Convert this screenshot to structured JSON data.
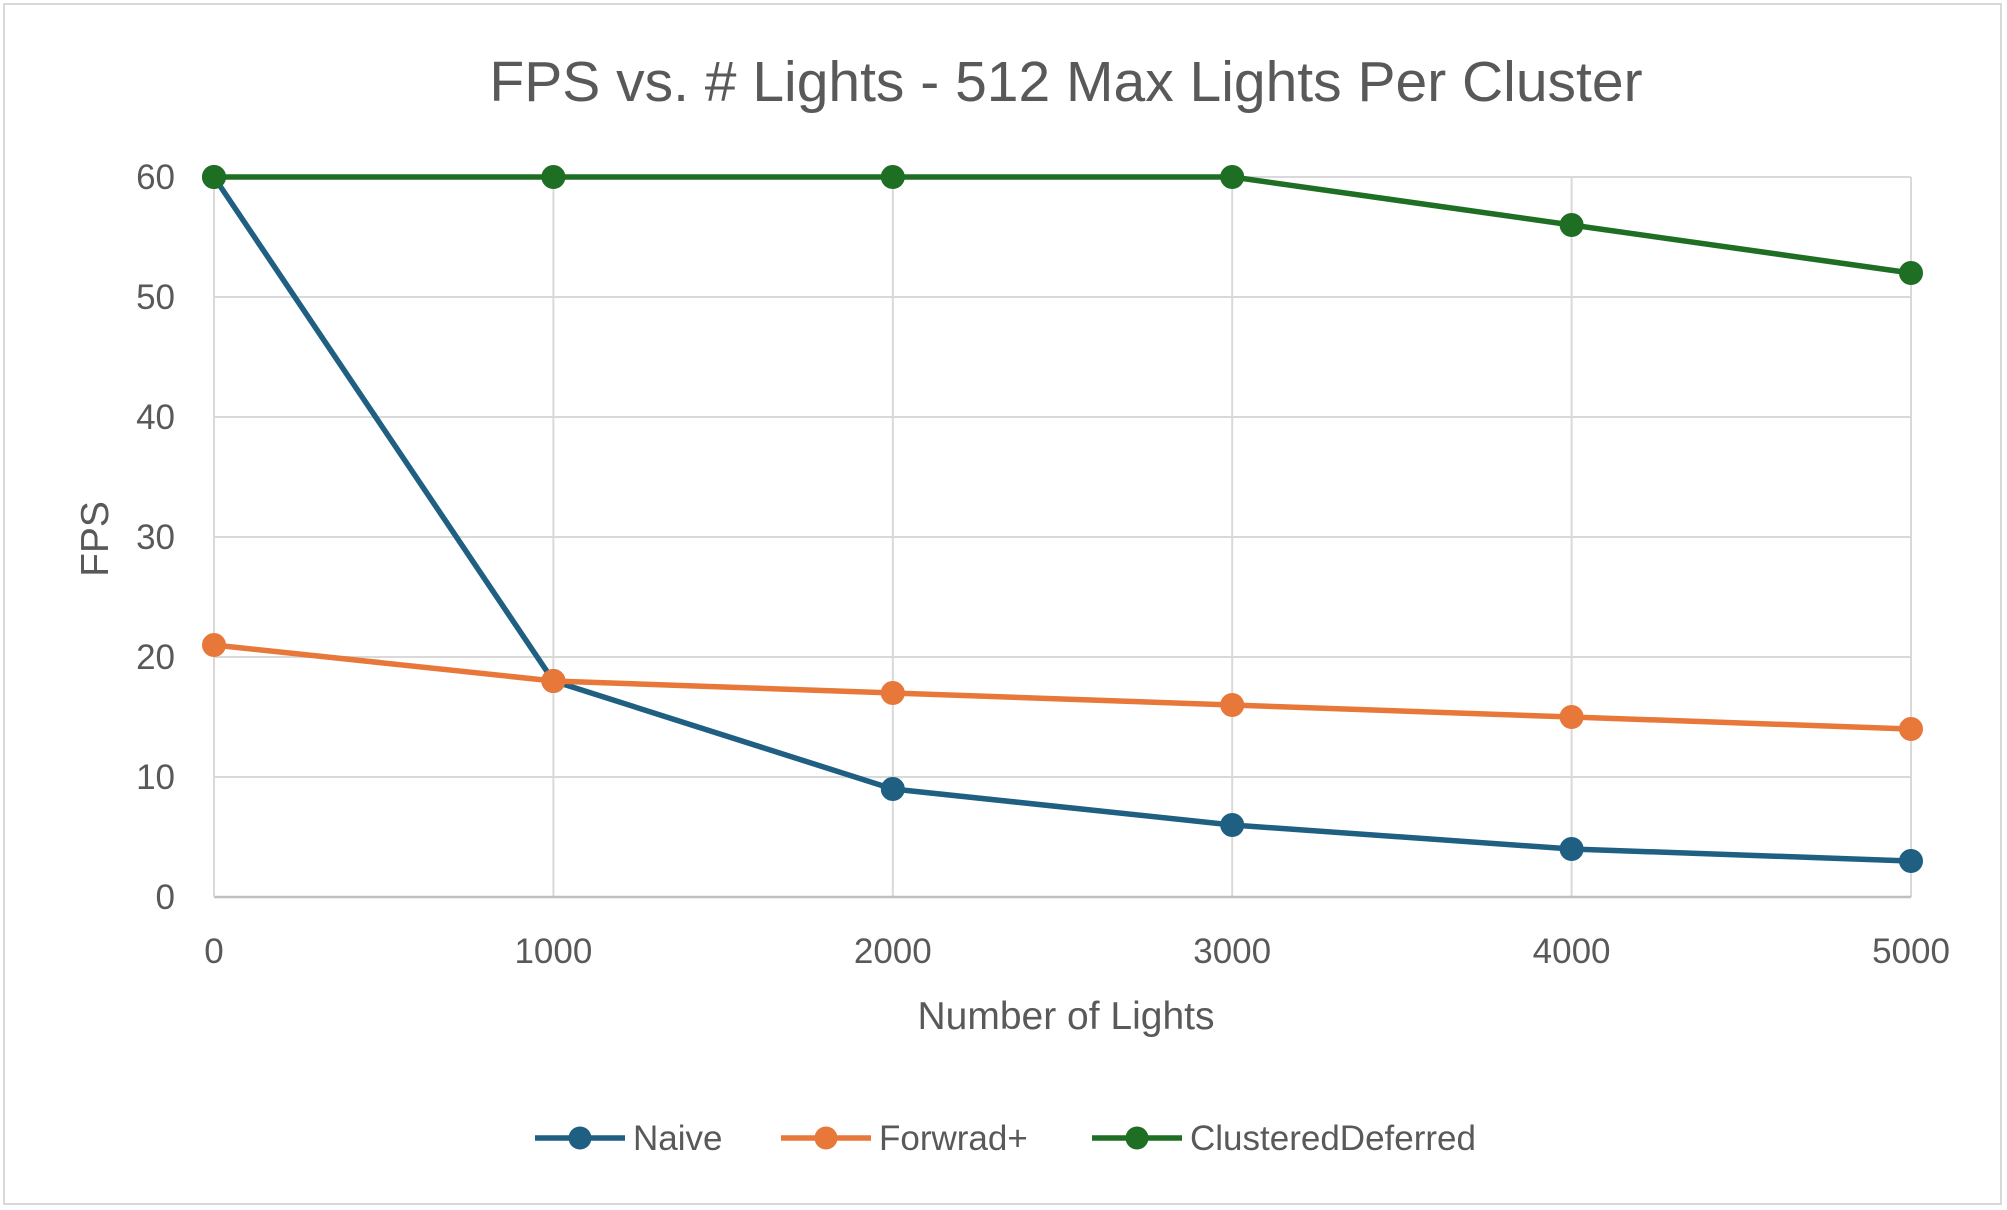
{
  "chart_data": {
    "type": "line",
    "title": "FPS vs. # Lights - 512 Max Lights Per Cluster",
    "xlabel": "Number of Lights",
    "ylabel": "FPS",
    "x": [
      0,
      1000,
      2000,
      3000,
      4000,
      5000
    ],
    "xlim": [
      0,
      5000
    ],
    "ylim": [
      0,
      60
    ],
    "x_ticks": [
      0,
      1000,
      2000,
      3000,
      4000,
      5000
    ],
    "y_ticks": [
      0,
      10,
      20,
      30,
      40,
      50,
      60
    ],
    "grid": true,
    "legend_position": "bottom",
    "series": [
      {
        "name": "Naive",
        "color": "#1f5f82",
        "values": [
          60,
          18,
          9,
          6,
          4,
          3
        ]
      },
      {
        "name": "Forwrad+",
        "color": "#e8773a",
        "values": [
          21,
          18,
          17,
          16,
          15,
          14
        ]
      },
      {
        "name": "ClusteredDeferred",
        "color": "#1e6e24",
        "values": [
          60,
          60,
          60,
          60,
          56,
          52
        ]
      }
    ]
  }
}
